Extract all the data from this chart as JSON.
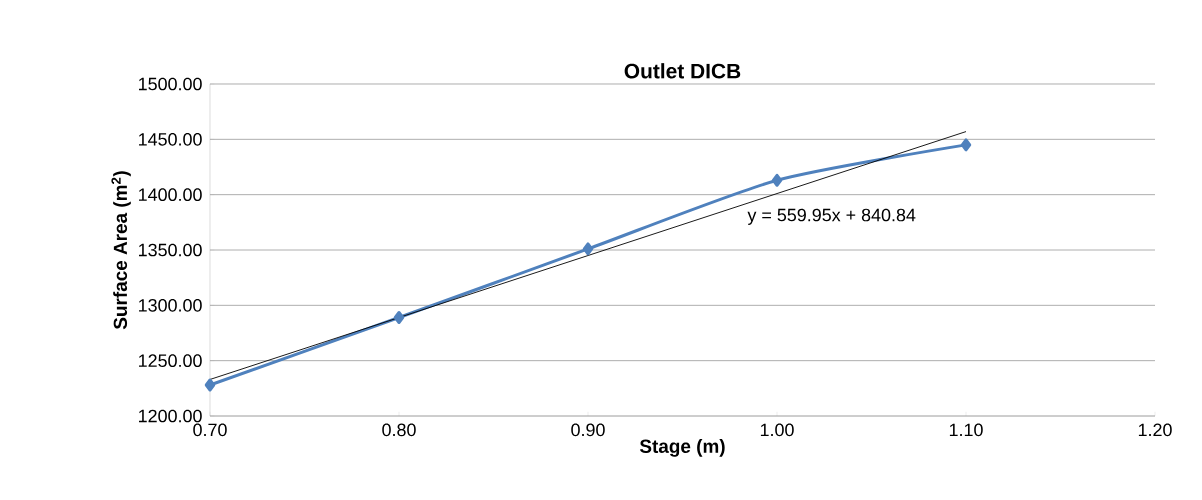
{
  "chart_data": {
    "type": "line",
    "title": "Outlet DICB",
    "xlabel": "Stage (m)",
    "ylabel": "Surface Area (m$^{2}$)",
    "x": [
      0.7,
      0.8,
      0.9,
      1.0,
      1.1
    ],
    "series": [
      {
        "color": "#4f81bd",
        "values": [
          1228,
          1289,
          1351,
          1413,
          1445
        ],
        "marker": "diamond"
      },
      {
        "color": "#000000",
        "x": [
          0.7,
          1.1
        ],
        "values": [
          1233,
          1457
        ],
        "marker": "none"
      }
    ],
    "annotations": [
      "y = 559.95x + 840.84"
    ],
    "xlim": [
      0.7,
      1.2
    ],
    "ylim": [
      1200,
      1500
    ],
    "xticks": [
      {
        "value": 0.7,
        "label": "0.70"
      },
      {
        "value": 0.8,
        "label": "0.80"
      },
      {
        "value": 0.9,
        "label": "0.90"
      },
      {
        "value": 1.0,
        "label": "1.00"
      },
      {
        "value": 1.1,
        "label": "1.10"
      },
      {
        "value": 1.2,
        "label": "1.20"
      }
    ],
    "yticks": [
      {
        "value": 1200,
        "label": "1200.00"
      },
      {
        "value": 1250,
        "label": "1250.00"
      },
      {
        "value": 1300,
        "label": "1300.00"
      },
      {
        "value": 1350,
        "label": "1350.00"
      },
      {
        "value": 1400,
        "label": "1400.00"
      },
      {
        "value": 1450,
        "label": "1450.00"
      },
      {
        "value": 1500,
        "label": "1500.00"
      }
    ],
    "grid": "y"
  }
}
